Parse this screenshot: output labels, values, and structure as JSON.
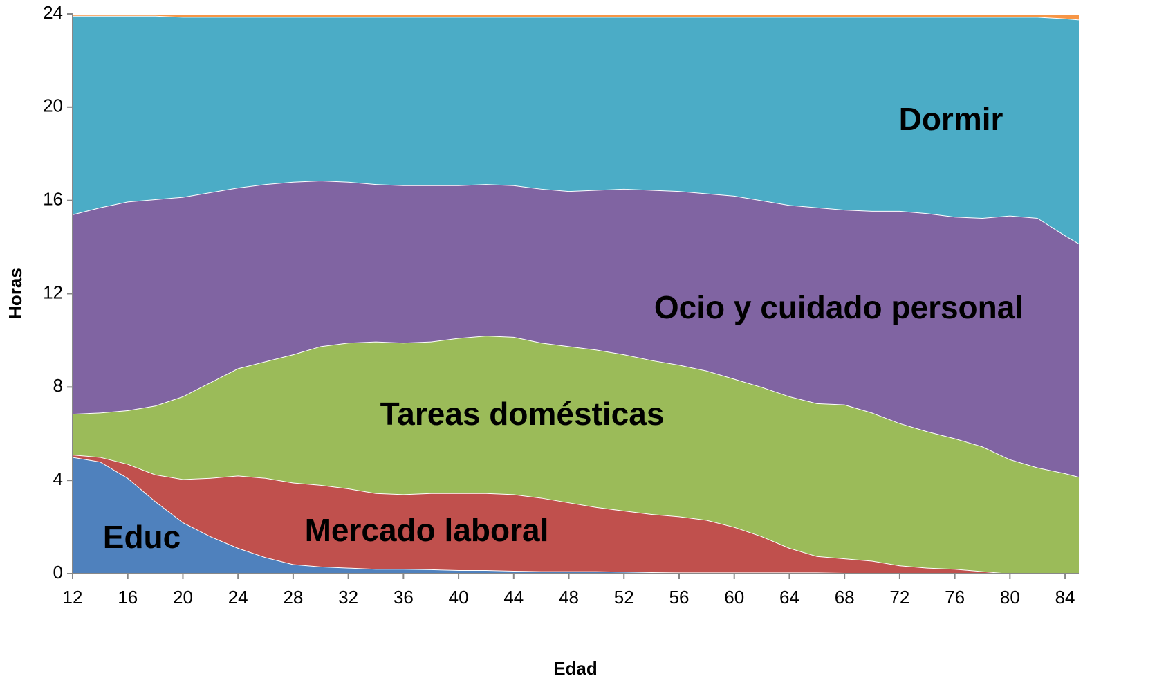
{
  "chart_data": {
    "type": "stacked_area",
    "x_label": "Edad",
    "y_label": "Horas",
    "x": [
      12,
      14,
      16,
      18,
      20,
      22,
      24,
      26,
      28,
      30,
      32,
      34,
      36,
      38,
      40,
      42,
      44,
      46,
      48,
      50,
      52,
      54,
      56,
      58,
      60,
      62,
      64,
      66,
      68,
      70,
      72,
      74,
      76,
      78,
      80,
      82,
      84,
      85
    ],
    "series": [
      {
        "name": "Educ",
        "color": "#4f81bd",
        "values": [
          5.0,
          4.8,
          4.1,
          3.1,
          2.2,
          1.6,
          1.1,
          0.7,
          0.4,
          0.3,
          0.25,
          0.2,
          0.2,
          0.18,
          0.15,
          0.15,
          0.12,
          0.1,
          0.1,
          0.1,
          0.08,
          0.06,
          0.05,
          0.05,
          0.05,
          0.05,
          0.05,
          0.05,
          0.03,
          0.03,
          0.02,
          0.02,
          0.02,
          0.01,
          0,
          0,
          0,
          0
        ]
      },
      {
        "name": "Mercado laboral",
        "color": "#c0504d",
        "values": [
          0.1,
          0.2,
          0.6,
          1.15,
          1.85,
          2.5,
          3.1,
          3.4,
          3.5,
          3.5,
          3.4,
          3.25,
          3.2,
          3.27,
          3.3,
          3.3,
          3.28,
          3.15,
          2.95,
          2.75,
          2.62,
          2.49,
          2.4,
          2.25,
          1.95,
          1.55,
          1.05,
          0.7,
          0.62,
          0.52,
          0.33,
          0.23,
          0.18,
          0.09,
          0,
          0,
          0,
          0
        ]
      },
      {
        "name": "Tareas domésticas",
        "color": "#9bbb59",
        "values": [
          1.75,
          1.9,
          2.3,
          2.95,
          3.55,
          4.1,
          4.6,
          5.0,
          5.5,
          5.95,
          6.25,
          6.5,
          6.5,
          6.5,
          6.65,
          6.75,
          6.75,
          6.65,
          6.7,
          6.75,
          6.7,
          6.6,
          6.5,
          6.4,
          6.35,
          6.4,
          6.5,
          6.55,
          6.6,
          6.35,
          6.1,
          5.85,
          5.6,
          5.35,
          4.9,
          4.55,
          4.3,
          4.15
        ]
      },
      {
        "name": "Ocio y cuidado personal",
        "color": "#8064a2",
        "values": [
          8.55,
          8.8,
          8.95,
          8.85,
          8.55,
          8.15,
          7.75,
          7.6,
          7.4,
          7.1,
          6.9,
          6.75,
          6.75,
          6.7,
          6.55,
          6.5,
          6.5,
          6.6,
          6.65,
          6.85,
          7.1,
          7.3,
          7.45,
          7.6,
          7.85,
          8.0,
          8.2,
          8.4,
          8.35,
          8.65,
          9.1,
          9.35,
          9.5,
          9.8,
          10.45,
          10.7,
          10.2,
          10.0
        ]
      },
      {
        "name": "Dormir",
        "color": "#4bacc6",
        "values": [
          8.52,
          8.22,
          7.97,
          7.87,
          7.72,
          7.52,
          7.32,
          7.17,
          7.07,
          7.02,
          7.07,
          7.17,
          7.22,
          7.22,
          7.22,
          7.17,
          7.22,
          7.37,
          7.47,
          7.42,
          7.37,
          7.42,
          7.47,
          7.57,
          7.67,
          7.87,
          8.07,
          8.17,
          8.27,
          8.32,
          8.32,
          8.42,
          8.57,
          8.62,
          8.52,
          8.62,
          9.3,
          9.6
        ]
      },
      {
        "color": "#f79646",
        "values": [
          0.08,
          0.08,
          0.08,
          0.08,
          0.13,
          0.13,
          0.13,
          0.13,
          0.13,
          0.13,
          0.13,
          0.13,
          0.13,
          0.13,
          0.13,
          0.13,
          0.13,
          0.13,
          0.13,
          0.13,
          0.13,
          0.13,
          0.13,
          0.13,
          0.13,
          0.13,
          0.13,
          0.13,
          0.13,
          0.13,
          0.13,
          0.13,
          0.13,
          0.13,
          0.13,
          0.13,
          0.2,
          0.25
        ]
      }
    ],
    "xlim": [
      12,
      85
    ],
    "xticks": [
      12,
      16,
      20,
      24,
      28,
      32,
      36,
      40,
      44,
      48,
      52,
      56,
      60,
      64,
      68,
      72,
      76,
      80,
      84
    ],
    "ylim": [
      0,
      24
    ],
    "yticks": [
      0,
      4,
      8,
      12,
      16,
      20,
      24
    ]
  }
}
